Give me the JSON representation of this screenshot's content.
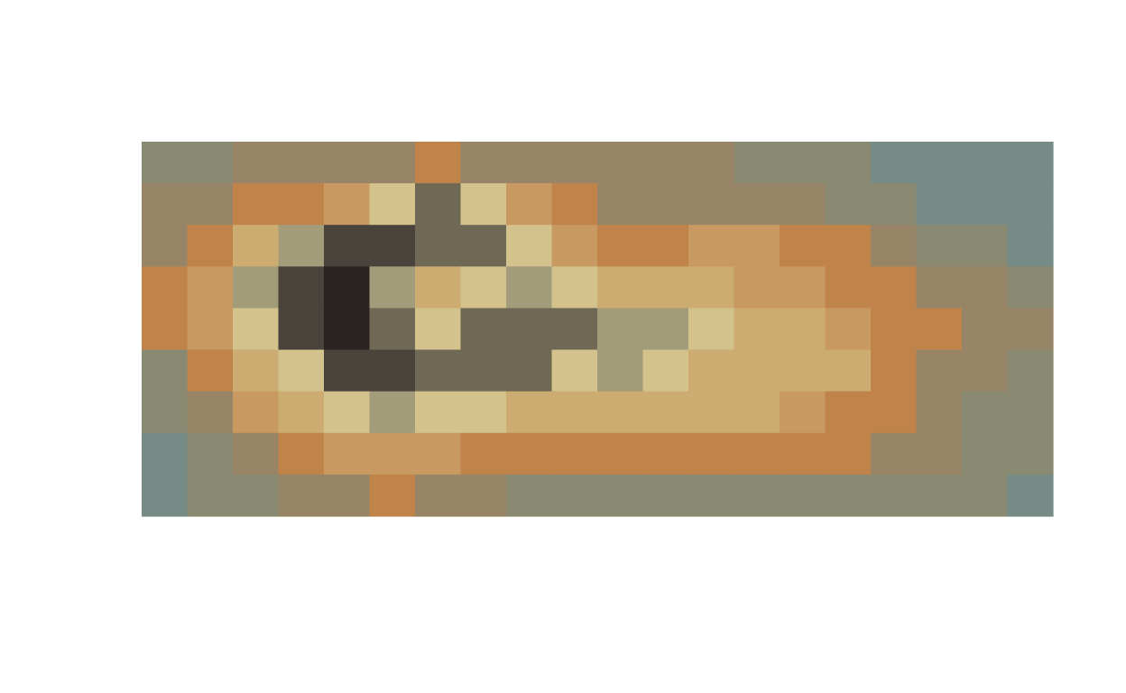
{
  "chart_data": {
    "type": "heatmap",
    "colors": [
      "#768a86",
      "#8a8a72",
      "#988466",
      "#c0844a",
      "#c89a62",
      "#cdac72",
      "#d3c28c",
      "#a29c7a",
      "#6f6855",
      "#4a433b",
      "#2a2223"
    ],
    "values": [
      [
        1,
        1,
        2,
        2,
        2,
        2,
        3,
        2,
        2,
        2,
        2,
        2,
        2,
        1,
        1,
        1,
        0,
        0,
        0,
        0
      ],
      [
        2,
        2,
        3,
        3,
        4,
        6,
        8,
        6,
        4,
        3,
        2,
        2,
        2,
        2,
        2,
        1,
        1,
        0,
        0,
        0
      ],
      [
        2,
        3,
        5,
        7,
        9,
        9,
        8,
        8,
        6,
        4,
        3,
        3,
        4,
        4,
        3,
        3,
        2,
        1,
        1,
        0
      ],
      [
        3,
        4,
        7,
        9,
        10,
        7,
        5,
        6,
        7,
        6,
        5,
        5,
        5,
        4,
        4,
        3,
        3,
        2,
        2,
        1
      ],
      [
        3,
        4,
        6,
        9,
        10,
        8,
        6,
        8,
        8,
        8,
        7,
        7,
        6,
        5,
        5,
        4,
        3,
        3,
        2,
        2
      ],
      [
        1,
        3,
        5,
        6,
        9,
        9,
        8,
        8,
        8,
        6,
        7,
        6,
        5,
        5,
        5,
        5,
        3,
        2,
        2,
        1
      ],
      [
        1,
        2,
        4,
        5,
        6,
        7,
        6,
        6,
        5,
        5,
        5,
        5,
        5,
        5,
        4,
        3,
        3,
        2,
        1,
        1
      ],
      [
        0,
        1,
        2,
        3,
        4,
        4,
        4,
        3,
        3,
        3,
        3,
        3,
        3,
        3,
        3,
        3,
        2,
        2,
        1,
        1
      ],
      [
        0,
        1,
        1,
        2,
        2,
        3,
        2,
        2,
        1,
        1,
        1,
        1,
        1,
        1,
        1,
        1,
        1,
        1,
        1,
        0
      ]
    ]
  }
}
